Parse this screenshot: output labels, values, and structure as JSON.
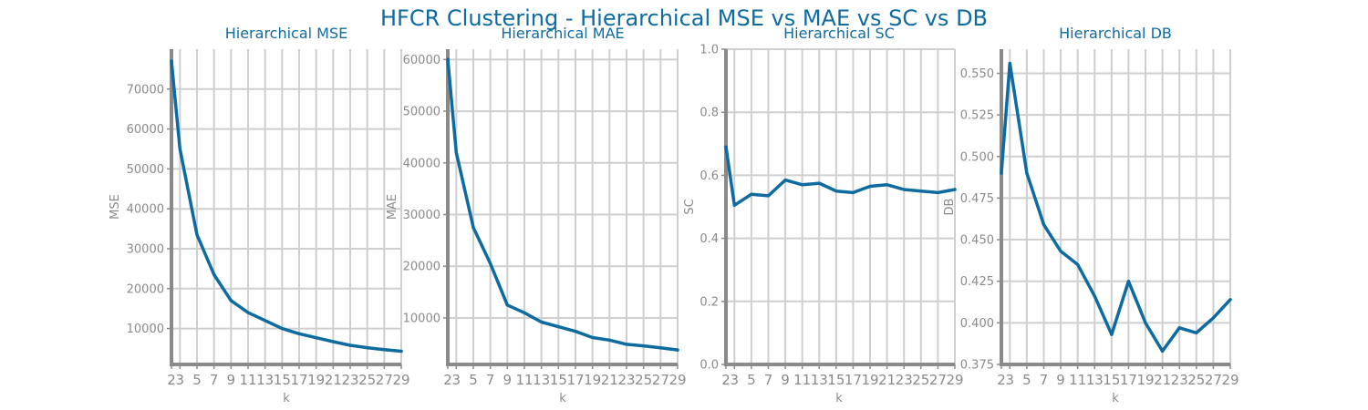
{
  "title": "HFCR Clustering - Hierarchical MSE vs MAE vs SC vs DB",
  "colors": {
    "line": "#0e6ba0",
    "title": "#0e6ba0",
    "grid": "#cfcfcf",
    "axis": "#8a8a8a"
  },
  "chart_data": [
    {
      "type": "line",
      "title": "Hierarchical MSE",
      "xlabel": "k",
      "ylabel": "MSE",
      "x": [
        2,
        3,
        5,
        7,
        9,
        11,
        13,
        15,
        17,
        19,
        21,
        23,
        25,
        27,
        29
      ],
      "xticks": [
        "2",
        "3",
        "5",
        "7",
        "9",
        "11",
        "13",
        "15",
        "17",
        "19",
        "21",
        "23",
        "25",
        "27",
        "29"
      ],
      "xlim": [
        2,
        29
      ],
      "ylim": [
        1000,
        80000
      ],
      "yticks": [
        10000,
        20000,
        30000,
        40000,
        50000,
        60000,
        70000
      ],
      "ytick_labels": [
        "10000",
        "20000",
        "30000",
        "40000",
        "50000",
        "60000",
        "70000"
      ],
      "grid": true,
      "series": [
        {
          "values": [
            77000,
            55000,
            33500,
            23500,
            17000,
            14000,
            12000,
            10000,
            8700,
            7700,
            6700,
            5800,
            5200,
            4700,
            4300
          ]
        }
      ]
    },
    {
      "type": "line",
      "title": "Hierarchical MAE",
      "xlabel": "k",
      "ylabel": "MAE",
      "x": [
        2,
        3,
        5,
        7,
        9,
        11,
        13,
        15,
        17,
        19,
        21,
        23,
        25,
        27,
        29
      ],
      "xticks": [
        "2",
        "3",
        "5",
        "7",
        "9",
        "11",
        "13",
        "15",
        "17",
        "19",
        "21",
        "23",
        "25",
        "27",
        "29"
      ],
      "xlim": [
        2,
        29
      ],
      "ylim": [
        1000,
        62000
      ],
      "yticks": [
        10000,
        20000,
        30000,
        40000,
        50000,
        60000
      ],
      "ytick_labels": [
        "10000",
        "20000",
        "30000",
        "40000",
        "50000",
        "60000"
      ],
      "grid": true,
      "series": [
        {
          "values": [
            60000,
            42000,
            27500,
            20500,
            12500,
            11000,
            9200,
            8300,
            7400,
            6200,
            5700,
            4900,
            4600,
            4200,
            3800
          ]
        }
      ]
    },
    {
      "type": "line",
      "title": "Hierarchical SC",
      "xlabel": "k",
      "ylabel": "SC",
      "x": [
        2,
        3,
        5,
        7,
        9,
        11,
        13,
        15,
        17,
        19,
        21,
        23,
        25,
        27,
        29
      ],
      "xticks": [
        "2",
        "3",
        "5",
        "7",
        "9",
        "11",
        "13",
        "15",
        "17",
        "19",
        "21",
        "23",
        "25",
        "27",
        "29"
      ],
      "xlim": [
        2,
        29
      ],
      "ylim": [
        0.0,
        1.0
      ],
      "yticks": [
        0.0,
        0.2,
        0.4,
        0.6,
        0.8,
        1.0
      ],
      "ytick_labels": [
        "0.0",
        "0.2",
        "0.4",
        "0.6",
        "0.8",
        "1.0"
      ],
      "grid": true,
      "series": [
        {
          "values": [
            0.69,
            0.505,
            0.54,
            0.535,
            0.585,
            0.57,
            0.575,
            0.55,
            0.545,
            0.565,
            0.57,
            0.555,
            0.55,
            0.545,
            0.555
          ]
        }
      ]
    },
    {
      "type": "line",
      "title": "Hierarchical DB",
      "xlabel": "k",
      "ylabel": "DB",
      "x": [
        2,
        3,
        5,
        7,
        9,
        11,
        13,
        15,
        17,
        19,
        21,
        23,
        25,
        27,
        29
      ],
      "xticks": [
        "2",
        "3",
        "5",
        "7",
        "9",
        "11",
        "13",
        "15",
        "17",
        "19",
        "21",
        "23",
        "25",
        "27",
        "29"
      ],
      "xlim": [
        2,
        29
      ],
      "ylim": [
        0.375,
        0.5645
      ],
      "yticks": [
        0.375,
        0.4,
        0.425,
        0.45,
        0.475,
        0.5,
        0.525,
        0.55
      ],
      "ytick_labels": [
        "0.375",
        "0.400",
        "0.425",
        "0.450",
        "0.475",
        "0.500",
        "0.525",
        "0.550"
      ],
      "grid": true,
      "series": [
        {
          "values": [
            0.49,
            0.556,
            0.49,
            0.459,
            0.443,
            0.435,
            0.416,
            0.393,
            0.425,
            0.4,
            0.383,
            0.397,
            0.394,
            0.403,
            0.414
          ]
        }
      ]
    }
  ]
}
